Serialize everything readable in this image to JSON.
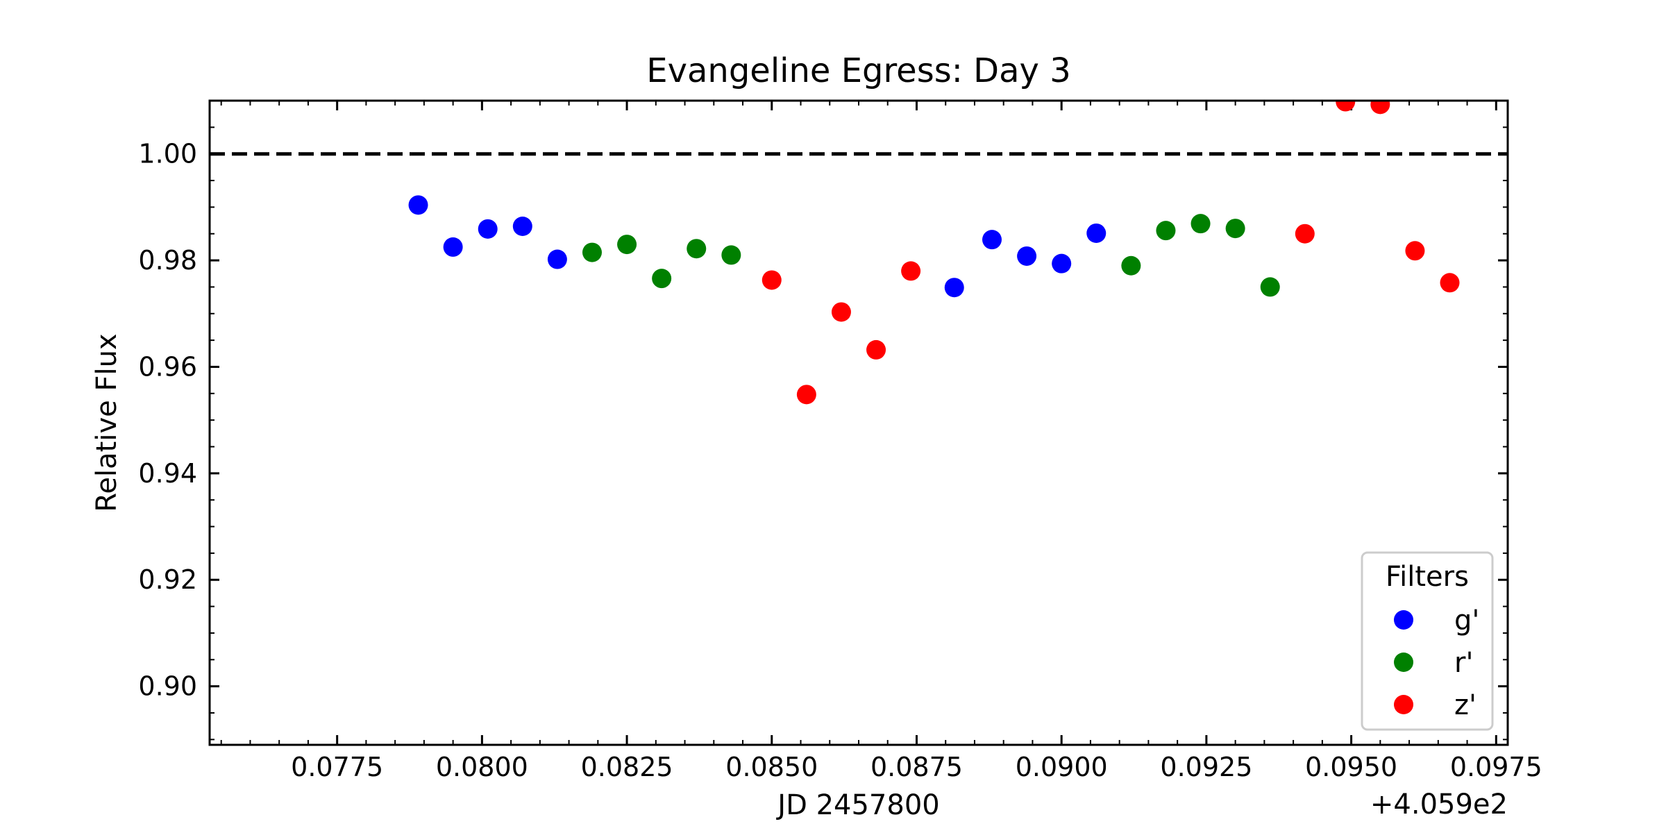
{
  "chart_data": {
    "type": "scatter",
    "title": "Evangeline Egress: Day 3",
    "xlabel": "JD 2457800",
    "ylabel": "Relative Flux",
    "x_offset_label": "+4.059e2",
    "xlim": [
      0.0753,
      0.0977
    ],
    "ylim": [
      0.889,
      1.01
    ],
    "x_ticks": [
      0.0775,
      0.08,
      0.0825,
      0.085,
      0.0875,
      0.09,
      0.0925,
      0.095,
      0.0975
    ],
    "x_tick_labels": [
      "0.0775",
      "0.0800",
      "0.0825",
      "0.0850",
      "0.0875",
      "0.0900",
      "0.0925",
      "0.0950",
      "0.0975"
    ],
    "y_ticks": [
      0.9,
      0.92,
      0.94,
      0.96,
      0.98,
      1.0
    ],
    "y_tick_labels": [
      "0.90",
      "0.92",
      "0.94",
      "0.96",
      "0.98",
      "1.00"
    ],
    "reference_line": {
      "y": 1.0,
      "style": "dashed",
      "color": "#000000"
    },
    "grid": false,
    "legend": {
      "title": "Filters",
      "position": "lower-right"
    },
    "series": [
      {
        "name": "g'",
        "color": "#0000ff",
        "points": [
          [
            0.0789,
            0.9904
          ],
          [
            0.0795,
            0.9825
          ],
          [
            0.0801,
            0.9859
          ],
          [
            0.0807,
            0.9864
          ],
          [
            0.0813,
            0.9802
          ],
          [
            0.08815,
            0.9749
          ],
          [
            0.0888,
            0.9839
          ],
          [
            0.0894,
            0.9808
          ],
          [
            0.09,
            0.9794
          ],
          [
            0.0906,
            0.9851
          ]
        ]
      },
      {
        "name": "r'",
        "color": "#008000",
        "points": [
          [
            0.0819,
            0.9815
          ],
          [
            0.0825,
            0.983
          ],
          [
            0.0831,
            0.9766
          ],
          [
            0.0837,
            0.9822
          ],
          [
            0.0843,
            0.981
          ],
          [
            0.0912,
            0.979
          ],
          [
            0.0918,
            0.9856
          ],
          [
            0.0924,
            0.9869
          ],
          [
            0.093,
            0.986
          ],
          [
            0.0936,
            0.975
          ]
        ]
      },
      {
        "name": "z'",
        "color": "#ff0000",
        "points": [
          [
            0.085,
            0.9763
          ],
          [
            0.0856,
            0.9548
          ],
          [
            0.0862,
            0.9703
          ],
          [
            0.0868,
            0.9632
          ],
          [
            0.0874,
            0.978
          ],
          [
            0.0942,
            0.985
          ],
          [
            0.0949,
            1.0098
          ],
          [
            0.0955,
            1.0093
          ],
          [
            0.0961,
            0.9818
          ],
          [
            0.0967,
            0.9758
          ]
        ]
      }
    ]
  }
}
